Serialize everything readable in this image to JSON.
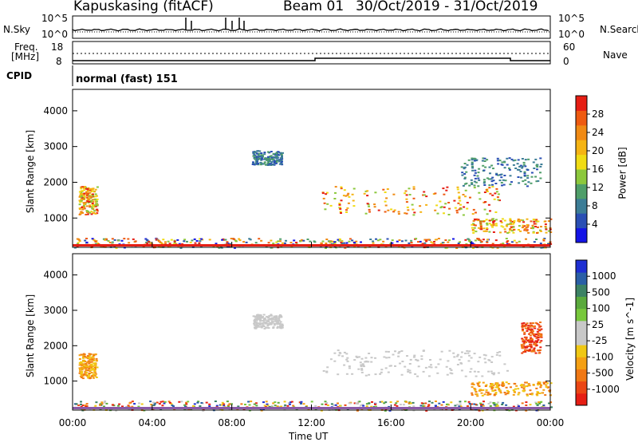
{
  "header": {
    "title": "Kapuskasing (fitACF)",
    "beam": "Beam 01",
    "date_range": "30/Oct/2019 - 31/Oct/2019"
  },
  "noise_panel": {
    "left_label": "N.Sky",
    "right_label": "N.Search",
    "tick_top": "10^5",
    "tick_bottom": "10^0"
  },
  "freq_panel": {
    "left_label_1": "Freq.",
    "left_label_2": "[MHz]",
    "right_label": "Nave",
    "left_ticks": [
      "18",
      "8"
    ],
    "right_ticks": [
      "60",
      "0"
    ]
  },
  "cpid": {
    "label": "CPID",
    "value": "normal (fast) 151"
  },
  "chart_data": [
    {
      "type": "heatmap",
      "name": "power",
      "ylabel": "Slant Range [km]",
      "xlabel": "",
      "x_ticks": [
        "00:00",
        "04:00",
        "08:00",
        "12:00",
        "16:00",
        "20:00",
        "00:00"
      ],
      "y_ticks": [
        1000,
        2000,
        3000,
        4000
      ],
      "ylim": [
        180,
        4600
      ],
      "xlim_hours": [
        0,
        24
      ],
      "colorbar": {
        "label": "Power [dB]",
        "ticks": [
          "4",
          "8",
          "12",
          "16",
          "20",
          "24",
          "28"
        ],
        "colors": [
          "#1414e6",
          "#2a4fb4",
          "#3c7d96",
          "#4f9e69",
          "#8cc83c",
          "#f0dc14",
          "#f5b414",
          "#f08a14",
          "#ee5a10",
          "#e61e14"
        ]
      },
      "echo_regions": [
        {
          "t0": 0.3,
          "t1": 1.2,
          "r0": 1100,
          "r1": 1900,
          "level": "high"
        },
        {
          "t0": 12.5,
          "t1": 21.5,
          "r0": 1100,
          "r1": 1900,
          "level": "high"
        },
        {
          "t0": 20.0,
          "t1": 24.0,
          "r0": 600,
          "r1": 1000,
          "level": "high"
        },
        {
          "t0": 19.5,
          "t1": 23.5,
          "r0": 1900,
          "r1": 2700,
          "level": "low"
        },
        {
          "t0": 9.0,
          "t1": 10.5,
          "r0": 2500,
          "r1": 2900,
          "level": "low"
        },
        {
          "t0": 0.0,
          "t1": 24.0,
          "r0": 180,
          "r1": 450,
          "level": "ground"
        }
      ]
    },
    {
      "type": "heatmap",
      "name": "velocity",
      "ylabel": "Slant Range [km]",
      "xlabel": "Time UT",
      "x_ticks": [
        "00:00",
        "04:00",
        "08:00",
        "12:00",
        "16:00",
        "20:00",
        "00:00"
      ],
      "y_ticks": [
        1000,
        2000,
        3000,
        4000
      ],
      "ylim": [
        180,
        4600
      ],
      "xlim_hours": [
        0,
        24
      ],
      "colorbar": {
        "label": "Velocity [m s^-1]",
        "ticks": [
          "1000",
          "500",
          "100",
          "25",
          "-25",
          "-100",
          "-500",
          "-1000"
        ],
        "colors": [
          "#1e2fd2",
          "#2a5fa6",
          "#3c8264",
          "#5aaa3c",
          "#78c83c",
          "#c8c8c8",
          "#c8c8c8",
          "#f0c814",
          "#f5a014",
          "#f07814",
          "#eb4614",
          "#e61e14"
        ]
      },
      "echo_regions": [
        {
          "t0": 0.3,
          "t1": 1.2,
          "r0": 1100,
          "r1": 1800,
          "level": "orange"
        },
        {
          "t0": 12.5,
          "t1": 21.8,
          "r0": 1150,
          "r1": 1900,
          "level": "gray"
        },
        {
          "t0": 20.0,
          "t1": 24.0,
          "r0": 600,
          "r1": 1000,
          "level": "orange"
        },
        {
          "t0": 22.5,
          "t1": 23.5,
          "r0": 1800,
          "r1": 2700,
          "level": "red"
        },
        {
          "t0": 9.0,
          "t1": 10.5,
          "r0": 2500,
          "r1": 2900,
          "level": "gray"
        },
        {
          "t0": 0.0,
          "t1": 24.0,
          "r0": 180,
          "r1": 450,
          "level": "ground"
        }
      ]
    }
  ]
}
